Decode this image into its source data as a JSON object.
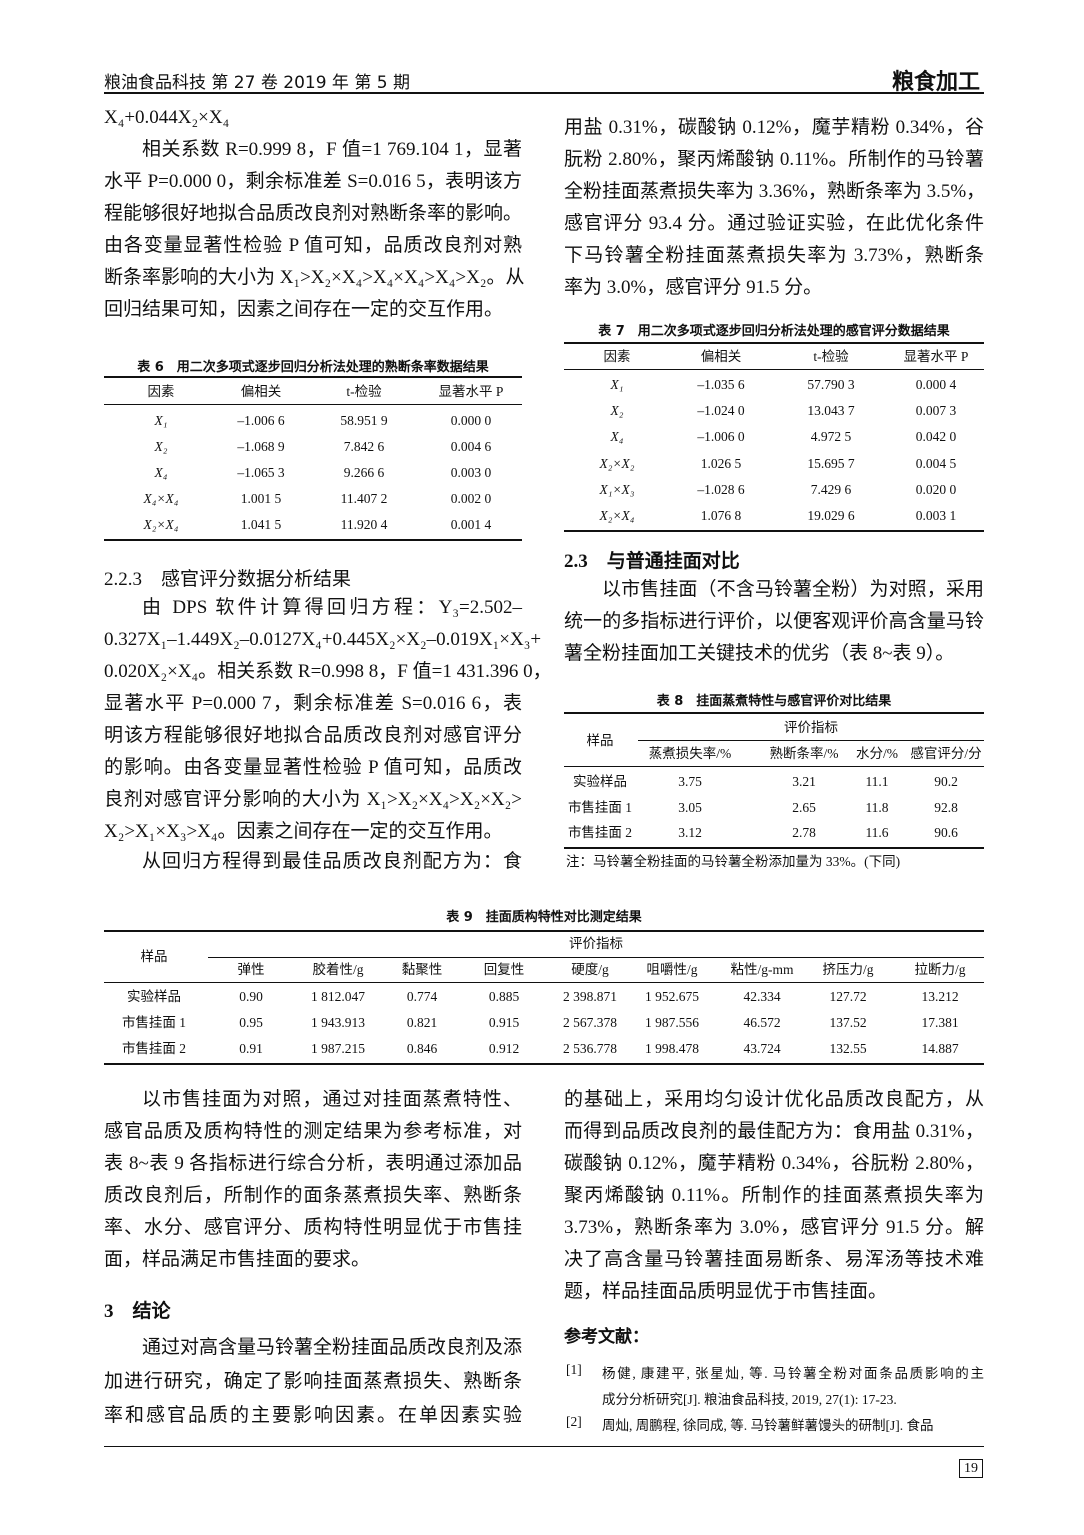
{
  "header": {
    "journal": "粮油食品科技 第 27 卷 2019 年 第 5 期",
    "section": "粮食加工"
  },
  "left": {
    "eq_tail": "X₄+0.044X₂×X₄",
    "p1": [
      "相关系数 R=0.999 8，F 值=1 769.104 1，显著",
      "水平 P=0.000 0，剩余标准差 S=0.016 5，表明该方",
      "程能够很好地拟合品质改良剂对熟断条率的影响。",
      "由各变量显著性检验 P 值可知，品质改良剂对熟",
      "断条率影响的大小为 X₁>X₂×X₄>X₄×X₄>X₄>X₂。从",
      "回归结果可知，因素之间存在一定的交互作用。"
    ],
    "h223": "2.2.3　感官评分数据分析结果",
    "p2": [
      "由 DPS 软件计算得回归方程：Y₃=2.502–",
      "0.327X₁–1.449X₂–0.0127X₄+0.445X₂×X₂–0.019X₁×X₃+",
      "0.020X₂×X₄。相关系数 R=0.998 8，F 值=1 431.396 0，",
      "显著水平 P=0.000 7，剩余标准差 S=0.016 6，表",
      "明该方程能够很好地拟合品质改良剂对感官评分",
      "的影响。由各变量显著性检验 P 值可知，品质改",
      "良剂对感官评分影响的大小为 X₁>X₂×X₄>X₂×X₂>",
      "X₂>X₁×X₃>X₄。因素之间存在一定的交互作用。"
    ],
    "p3": [
      "从回归方程得到最佳品质改良剂配方为：食"
    ],
    "p4": [
      "以市售挂面为对照，通过对挂面蒸煮特性、",
      "感官品质及质构特性的测定结果为参考标准，对",
      "表 8~表 9 各指标进行综合分析，表明通过添加品",
      "质改良剂后，所制作的面条蒸煮损失率、熟断条",
      "率、水分、感官评分、质构特性明显优于市售挂",
      "面，样品满足市售挂面的要求。"
    ],
    "h3": "3　结论",
    "p5": [
      "通过对高含量马铃薯全粉挂面品质改良剂及添",
      "加进行研究，确定了影响挂面蒸煮损失、熟断条",
      "率和感官品质的主要影响因素。在单因素实验"
    ]
  },
  "right": {
    "p1": [
      "用盐 0.31%，碳酸钠 0.12%，魔芋精粉 0.34%，谷",
      "朊粉 2.80%，聚丙烯酸钠 0.11%。所制作的马铃薯",
      "全粉挂面蒸煮损失率为 3.36%，熟断条率为 3.5%，",
      "感官评分 93.4 分。通过验证实验，在此优化条件",
      "下马铃薯全粉挂面蒸煮损失率为 3.73%，熟断条",
      "率为 3.0%，感官评分 91.5 分。"
    ],
    "h23": "2.3　与普通挂面对比",
    "p2": [
      "以市售挂面（不含马铃薯全粉）为对照，采用",
      "统一的多指标进行评价，以便客观评价高含量马铃",
      "薯全粉挂面加工关键技术的优劣（表 8~表 9）。"
    ],
    "p3": [
      "的基础上，采用均匀设计优化品质改良配方，从",
      "而得到品质改良剂的最佳配方为：食用盐 0.31%，",
      "碳酸钠 0.12%，魔芋精粉 0.34%，谷朊粉 2.80%，",
      "聚丙烯酸钠 0.11%。所制作的挂面蒸煮损失率为",
      "3.73%，熟断条率为 3.0%，感官评分 91.5 分。解",
      "决了高含量马铃薯挂面易断条、易浑汤等技术难",
      "题，样品挂面品质明显优于市售挂面。"
    ],
    "refs_title": "参考文献：",
    "refs": [
      {
        "num": "[1]",
        "lines": [
          "杨健, 康建平, 张星灿, 等. 马铃薯全粉对面条品质影响的主",
          "成分分析研究[J]. 粮油食品科技, 2019, 27(1): 17-23."
        ]
      },
      {
        "num": "[2]",
        "lines": [
          "周灿, 周鹏程, 徐同成, 等. 马铃薯鲜薯馒头的研制[J]. 食品"
        ]
      }
    ]
  },
  "table6": {
    "caption": "表 6　用二次多项式逐步回归分析法处理的熟断条率数据结果",
    "headers": [
      "因素",
      "偏相关",
      "t-检验",
      "显著水平 P"
    ],
    "rows": [
      [
        "X₁",
        "–1.006 6",
        "58.951 9",
        "0.000 0"
      ],
      [
        "X₂",
        "–1.068 9",
        "7.842 6",
        "0.004 6"
      ],
      [
        "X₄",
        "–1.065 3",
        "9.266 6",
        "0.003 0"
      ],
      [
        "X₄×X₄",
        "1.001 5",
        "11.407 2",
        "0.002 0"
      ],
      [
        "X₂×X₄",
        "1.041 5",
        "11.920 4",
        "0.001 4"
      ]
    ]
  },
  "table7": {
    "caption": "表 7　用二次多项式逐步回归分析法处理的感官评分数据结果",
    "headers": [
      "因素",
      "偏相关",
      "t-检验",
      "显著水平 P"
    ],
    "rows": [
      [
        "X₁",
        "–1.035 6",
        "57.790 3",
        "0.000 4"
      ],
      [
        "X₂",
        "–1.024 0",
        "13.043 7",
        "0.007 3"
      ],
      [
        "X₄",
        "–1.006 0",
        "4.972 5",
        "0.042 0"
      ],
      [
        "X₂×X₂",
        "1.026 5",
        "15.695 7",
        "0.004 5"
      ],
      [
        "X₁×X₃",
        "–1.028 6",
        "7.429 6",
        "0.020 0"
      ],
      [
        "X₂×X₄",
        "1.076 8",
        "19.029 6",
        "0.003 1"
      ]
    ]
  },
  "table8": {
    "caption": "表 8　挂面蒸煮特性与感官评价对比结果",
    "sample_header": "样品",
    "group_header": "评价指标",
    "headers": [
      "蒸煮损失率/%",
      "熟断条率/%",
      "水分/%",
      "感官评分/分"
    ],
    "rows": [
      [
        "实验样品",
        "3.75",
        "3.21",
        "11.1",
        "90.2"
      ],
      [
        "市售挂面 1",
        "3.05",
        "2.65",
        "11.8",
        "92.8"
      ],
      [
        "市售挂面 2",
        "3.12",
        "2.78",
        "11.6",
        "90.6"
      ]
    ],
    "note": "注：马铃薯全粉挂面的马铃薯全粉添加量为 33%。(下同)"
  },
  "table9": {
    "caption": "表 9　挂面质构特性对比测定结果",
    "sample_header": "样品",
    "group_header": "评价指标",
    "headers": [
      "弹性",
      "胶着性/g",
      "黏聚性",
      "回复性",
      "硬度/g",
      "咀嚼性/g",
      "粘性/g-mm",
      "挤压力/g",
      "拉断力/g"
    ],
    "rows": [
      [
        "实验样品",
        "0.90",
        "1 812.047",
        "0.774",
        "0.885",
        "2 398.871",
        "1 952.675",
        "42.334",
        "127.72",
        "13.212"
      ],
      [
        "市售挂面 1",
        "0.95",
        "1 943.913",
        "0.821",
        "0.915",
        "2 567.378",
        "1 987.556",
        "46.572",
        "137.52",
        "17.381"
      ],
      [
        "市售挂面 2",
        "0.91",
        "1 987.215",
        "0.846",
        "0.912",
        "2 536.778",
        "1 998.478",
        "43.724",
        "132.55",
        "14.887"
      ]
    ]
  },
  "footer": {
    "page_number": "19"
  }
}
